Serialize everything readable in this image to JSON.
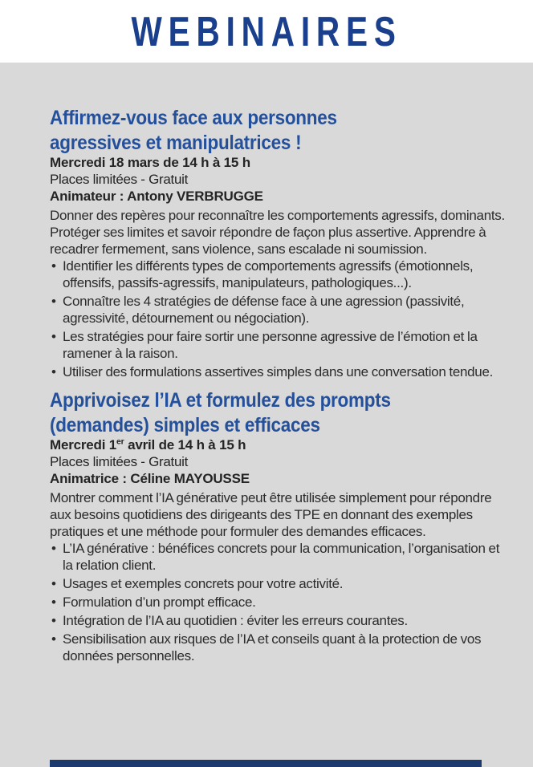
{
  "page": {
    "title": "WEBINAIRES"
  },
  "glyphs": {
    "bullet": "•"
  },
  "colors": {
    "title_blue": "#1a3f8c",
    "heading_blue": "#24509b",
    "body_text": "#2b2b2b",
    "panel_gray": "#d9d9d9",
    "footer_bar_navy": "#1c3a6e",
    "page_white": "#ffffff"
  },
  "sections": [
    {
      "title_line1": "Affirmez-vous face aux personnes",
      "title_line2": "agressives et manipulatrices !",
      "date": {
        "pre": "Mercredi 18 mars de 14 h à 15 h",
        "sup": "",
        "post": ""
      },
      "availability": "Places limitées - Gratuit",
      "host": "Animateur : Antony VERBRUGGE",
      "description": "Donner des repères pour reconnaître les comportements agressifs, dominants. Protéger ses limites et savoir répondre de façon plus assertive. Apprendre à recadrer fermement, sans violence, sans escalade ni soumission.",
      "bullets": [
        "Identifier les différents types de comportements agressifs (émotionnels, offensifs, passifs-agressifs, manipulateurs, pathologiques...).",
        "Connaître les 4 stratégies de défense face à une agression (passivité, agressivité, détournement ou négociation).",
        "Les stratégies pour faire sortir une personne agressive de l’émotion et la ramener à la raison.",
        "Utiliser des formulations assertives simples dans une conversation tendue."
      ]
    },
    {
      "title_line1": "Apprivoisez l’IA et formulez des prompts",
      "title_line2": "(demandes) simples et efficaces",
      "date": {
        "pre": "Mercredi 1",
        "sup": "er",
        "post": " avril de 14 h à 15 h"
      },
      "availability": "Places limitées - Gratuit",
      "host": "Animatrice : Céline MAYOUSSE",
      "description": "Montrer comment l’IA générative peut être utilisée simplement pour répondre aux besoins quotidiens des dirigeants des TPE en donnant des exemples pratiques et une méthode pour formuler des demandes efficaces.",
      "bullets": [
        "L’IA générative : bénéfices concrets pour la communication, l’organisation et la relation client.",
        "Usages et exemples concrets pour votre activité.",
        "Formulation d’un prompt efficace.",
        "Intégration de l’IA au quotidien : éviter les erreurs courantes.",
        "Sensibilisation aux risques de l’IA et conseils quant à la protection de vos données personnelles."
      ]
    }
  ]
}
